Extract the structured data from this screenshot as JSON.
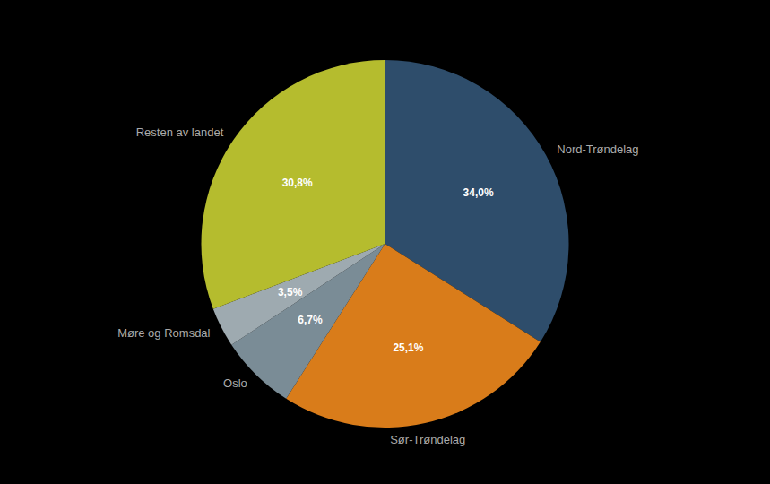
{
  "chart_data": {
    "type": "pie",
    "categories": [
      "Nord-Trøndelag",
      "Sør-Trøndelag",
      "Oslo",
      "Møre og Romsdal",
      "Resten av landet"
    ],
    "values": [
      34.0,
      25.1,
      6.7,
      3.5,
      30.8
    ],
    "value_labels": [
      "34,0%",
      "25,1%",
      "6,7%",
      "3,5%",
      "30,8%"
    ],
    "colors": [
      "#2e4d6b",
      "#d97c1a",
      "#7a8c96",
      "#9eaab0",
      "#b5bc2e"
    ],
    "data_labels": true
  }
}
